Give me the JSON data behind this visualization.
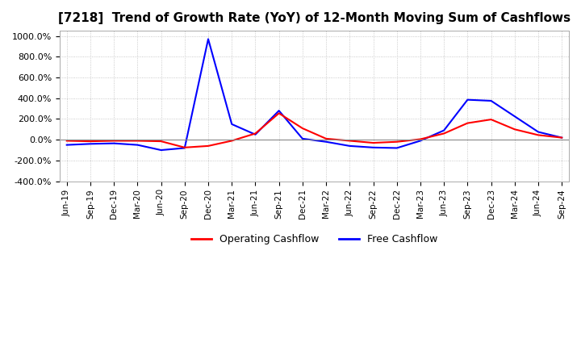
{
  "title": "[7218]  Trend of Growth Rate (YoY) of 12-Month Moving Sum of Cashflows",
  "title_fontsize": 11,
  "ylim": [
    -400,
    1050
  ],
  "yticks": [
    -400,
    -200,
    0,
    200,
    400,
    600,
    800,
    1000
  ],
  "background_color": "#ffffff",
  "grid_color": "#bbbbbb",
  "legend_labels": [
    "Operating Cashflow",
    "Free Cashflow"
  ],
  "x_labels": [
    "Jun-19",
    "Sep-19",
    "Dec-19",
    "Mar-20",
    "Jun-20",
    "Sep-20",
    "Dec-20",
    "Mar-21",
    "Jun-21",
    "Sep-21",
    "Dec-21",
    "Mar-22",
    "Jun-22",
    "Sep-22",
    "Dec-22",
    "Mar-23",
    "Jun-23",
    "Sep-23",
    "Dec-23",
    "Mar-24",
    "Jun-24",
    "Sep-24"
  ],
  "operating_cf": [
    -10,
    -15,
    -10,
    -10,
    -15,
    -75,
    -60,
    -10,
    60,
    255,
    110,
    10,
    -10,
    -30,
    -20,
    5,
    60,
    160,
    195,
    100,
    45,
    20
  ],
  "free_cf": [
    -50,
    -40,
    -35,
    -50,
    -100,
    -80,
    970,
    150,
    50,
    280,
    10,
    -20,
    -60,
    -75,
    -80,
    -10,
    90,
    385,
    375,
    225,
    75,
    20
  ],
  "operating_color": "#ff0000",
  "free_color": "#0000ff",
  "line_width": 1.5
}
